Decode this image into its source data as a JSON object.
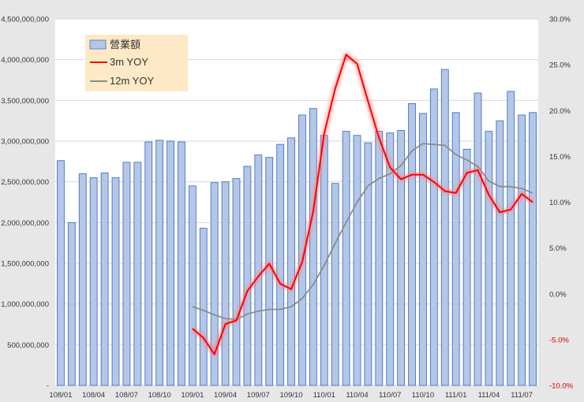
{
  "chart_data": {
    "type": "bar+line",
    "title": "",
    "xlabel": "",
    "ylabel": "",
    "grid": "horizontal",
    "legend_position": "top-left",
    "categories": [
      "108/01",
      "108/02",
      "108/03",
      "108/04",
      "108/05",
      "108/06",
      "108/07",
      "108/08",
      "108/09",
      "108/10",
      "108/11",
      "108/12",
      "109/01",
      "109/02",
      "109/03",
      "109/04",
      "109/05",
      "109/06",
      "109/07",
      "109/08",
      "109/09",
      "109/10",
      "109/11",
      "109/12",
      "110/01",
      "110/02",
      "110/03",
      "110/04",
      "110/05",
      "110/06",
      "110/07",
      "110/08",
      "110/09",
      "110/10",
      "110/11",
      "110/12",
      "111/01",
      "111/02",
      "111/03",
      "111/04",
      "111/05",
      "111/06",
      "111/07",
      "111/08"
    ],
    "x_tick_labels": [
      "108/01",
      "108/04",
      "108/07",
      "108/10",
      "109/01",
      "109/04",
      "109/07",
      "109/10",
      "110/01",
      "110/04",
      "110/07",
      "110/10",
      "111/01",
      "111/04",
      "111/07"
    ],
    "y_left": {
      "min": 0,
      "max": 4500000000,
      "tick_labels": [
        "-",
        "500,000,000",
        "1,000,000,000",
        "1,500,000,000",
        "2,000,000,000",
        "2,500,000,000",
        "3,000,000,000",
        "3,500,000,000",
        "4,000,000,000",
        "4,500,000,000"
      ]
    },
    "y_right": {
      "min": -10,
      "max": 30,
      "tick_labels": [
        "-10.0%",
        "-5.0%",
        "0.0%",
        "5.0%",
        "10.0%",
        "15.0%",
        "20.0%",
        "25.0%",
        "30.0%"
      ]
    },
    "series": [
      {
        "name": "營業額",
        "type": "bar",
        "axis": "left",
        "color": "#b4c7e7",
        "edge": "#4472c4",
        "values": [
          2760000000,
          2000000000,
          2600000000,
          2550000000,
          2610000000,
          2550000000,
          2740000000,
          2740000000,
          2990000000,
          3010000000,
          3000000000,
          2990000000,
          2450000000,
          1930000000,
          2490000000,
          2500000000,
          2540000000,
          2690000000,
          2830000000,
          2800000000,
          2960000000,
          3040000000,
          3320000000,
          3400000000,
          3070000000,
          2480000000,
          3120000000,
          3070000000,
          2980000000,
          3120000000,
          3100000000,
          3130000000,
          3460000000,
          3340000000,
          3640000000,
          3880000000,
          3350000000,
          2900000000,
          3590000000,
          3120000000,
          3250000000,
          3610000000,
          3320000000,
          3350000000
        ]
      },
      {
        "name": "3m YOY",
        "type": "line",
        "axis": "right",
        "color": "#ff0000",
        "glow": true,
        "values": [
          null,
          null,
          null,
          null,
          null,
          null,
          null,
          null,
          null,
          null,
          null,
          null,
          -3.8,
          -4.8,
          -6.6,
          -3.3,
          -2.9,
          0.3,
          1.9,
          3.3,
          1.1,
          0.5,
          3.5,
          9.0,
          17.5,
          22.4,
          26.1,
          25.1,
          21.0,
          17.0,
          13.8,
          12.5,
          13.0,
          13.0,
          12.2,
          11.2,
          11.0,
          13.2,
          13.5,
          10.8,
          8.9,
          9.2,
          10.9,
          10.0
        ]
      },
      {
        "name": "12m YOY",
        "type": "line",
        "axis": "right",
        "color": "#8c8c8c",
        "glow": false,
        "values": [
          null,
          null,
          null,
          null,
          null,
          null,
          null,
          null,
          null,
          null,
          null,
          null,
          -1.4,
          -1.8,
          -2.3,
          -2.7,
          -2.8,
          -2.2,
          -1.9,
          -1.7,
          -1.7,
          -1.4,
          -0.5,
          1.0,
          3.1,
          5.5,
          7.8,
          10.0,
          11.8,
          12.6,
          13.1,
          14.0,
          15.6,
          16.4,
          16.3,
          16.2,
          15.2,
          14.6,
          13.9,
          12.3,
          11.7,
          11.7,
          11.5,
          11.0
        ]
      }
    ]
  }
}
